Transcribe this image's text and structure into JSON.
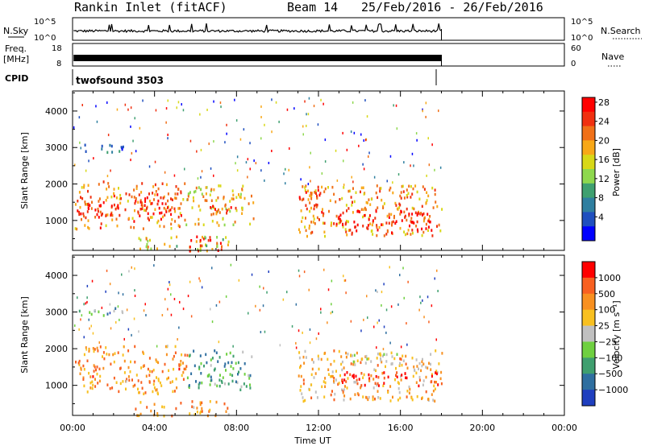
{
  "header": {
    "station": "Rankin Inlet (fitACF)",
    "beam": "Beam 14",
    "date_range": "25/Feb/2016 - 26/Feb/2016"
  },
  "labels": {
    "nsky": "N.Sky",
    "nsearch": "N.Search",
    "freq_line1": "Freq.",
    "freq_line2": "[MHz]",
    "nave": "Nave",
    "cpid": "CPID",
    "cpid_value": "twofsound 3503"
  },
  "noise_ticks": {
    "top": "10^5",
    "bottom": "10^0"
  },
  "freq_ticks": [
    "18",
    "8"
  ],
  "nave_ticks": [
    "60",
    "0"
  ],
  "time_ticks": [
    "00:00",
    "04:00",
    "08:00",
    "12:00",
    "16:00",
    "20:00",
    "00:00"
  ],
  "time_axis_label": "Time UT",
  "chart_data": [
    {
      "type": "heatmap",
      "name": "power",
      "ylabel": "Slant Range [km]",
      "xlabel": "Time UT",
      "x_hours": [
        0,
        24
      ],
      "ylim_km": [
        180,
        4550
      ],
      "yticks": [
        1000,
        2000,
        3000,
        4000
      ],
      "colorbar_label": "Power [dB]",
      "colorbar_ticks": [
        "4",
        "8",
        "12",
        "16",
        "20",
        "24",
        "28"
      ],
      "colorbar_colors": [
        "#0000ff",
        "#1f4fbf",
        "#2f7fa0",
        "#3fa070",
        "#8ed84e",
        "#d8d818",
        "#f8a818",
        "#f07018",
        "#f03010",
        "#ff0000"
      ],
      "data_end_hour": 18.0,
      "regions": [
        {
          "t0": 0.1,
          "t1": 5.6,
          "r0": 800,
          "r1": 2100,
          "level": 0.75
        },
        {
          "t0": 0.1,
          "t1": 2.3,
          "r0": 1000,
          "r1": 1500,
          "level": 0.95
        },
        {
          "t0": 3.0,
          "t1": 5.0,
          "r0": 1200,
          "r1": 1800,
          "level": 0.9
        },
        {
          "t0": 5.5,
          "t1": 8.8,
          "r0": 900,
          "r1": 2000,
          "level": 0.6
        },
        {
          "t0": 6.5,
          "t1": 8.0,
          "r0": 1200,
          "r1": 1700,
          "level": 0.85
        },
        {
          "t0": 3.0,
          "t1": 7.6,
          "r0": 200,
          "r1": 600,
          "level": 0.55
        },
        {
          "t0": 5.5,
          "t1": 7.3,
          "r0": 200,
          "r1": 600,
          "level": 0.95
        },
        {
          "t0": 0.3,
          "t1": 2.5,
          "r0": 2900,
          "r1": 3150,
          "level": 0.25
        },
        {
          "t0": 11.0,
          "t1": 18.0,
          "r0": 600,
          "r1": 2000,
          "level": 0.7
        },
        {
          "t0": 12.5,
          "t1": 17.5,
          "r0": 700,
          "r1": 1300,
          "level": 0.95
        },
        {
          "t0": 11.0,
          "t1": 12.3,
          "r0": 1100,
          "r1": 1900,
          "level": 0.8
        }
      ]
    },
    {
      "type": "heatmap",
      "name": "velocity",
      "ylabel": "Slant Range [km]",
      "xlabel": "Time UT",
      "x_hours": [
        0,
        24
      ],
      "ylim_km": [
        180,
        4550
      ],
      "yticks": [
        1000,
        2000,
        3000,
        4000
      ],
      "colorbar_label": "Velocity [m s⁻¹]",
      "colorbar_ticks": [
        "1000",
        "500",
        "100",
        "25",
        "−25",
        "−100",
        "−500",
        "−1000"
      ],
      "colorbar_colors": [
        "#1f3fbf",
        "#2f6fa0",
        "#3f9f6f",
        "#6fd040",
        "#c0c0c0",
        "#f8c020",
        "#f89020",
        "#f86020",
        "#ff0000"
      ],
      "data_end_hour": 18.0,
      "regions": [
        {
          "t0": 0.1,
          "t1": 5.6,
          "r0": 800,
          "r1": 2100,
          "level": 0.72
        },
        {
          "t0": 5.5,
          "t1": 8.8,
          "r0": 900,
          "r1": 2000,
          "level": 0.3
        },
        {
          "t0": 3.0,
          "t1": 7.6,
          "r0": 200,
          "r1": 600,
          "level": 0.7
        },
        {
          "t0": 0.3,
          "t1": 2.5,
          "r0": 2900,
          "r1": 3150,
          "level": 0.35
        },
        {
          "t0": 11.0,
          "t1": 18.0,
          "r0": 600,
          "r1": 2000,
          "level": 0.65
        },
        {
          "t0": 13.0,
          "t1": 17.8,
          "r0": 1000,
          "r1": 1400,
          "level": 0.92
        },
        {
          "t0": 13.0,
          "t1": 16.5,
          "r0": 1600,
          "r1": 1900,
          "level": 0.5
        }
      ]
    }
  ]
}
